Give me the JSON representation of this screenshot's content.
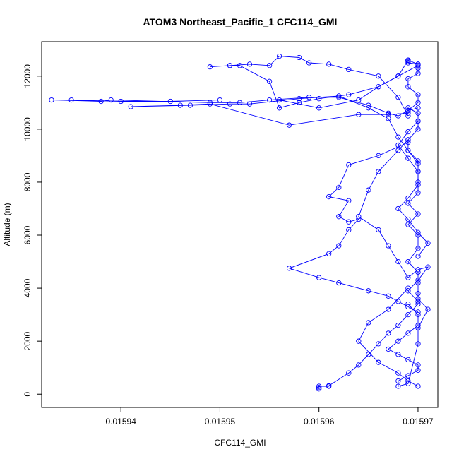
{
  "chart_data": {
    "type": "line",
    "title": "ATOM3 Northeast_Pacific_1 CFC114_GMI",
    "xlabel": "CFC114_GMI",
    "ylabel": "Altitude (m)",
    "xlim": [
      0.015932,
      0.015972
    ],
    "ylim": [
      -500,
      13300
    ],
    "x_ticks": [
      0.01594,
      0.01595,
      0.01596,
      0.01597
    ],
    "x_tick_labels": [
      "0.01594",
      "0.01595",
      "0.01596",
      "0.01597"
    ],
    "y_ticks": [
      0,
      2000,
      4000,
      6000,
      8000,
      10000,
      12000
    ],
    "y_tick_labels": [
      "0",
      "2000",
      "4000",
      "6000",
      "8000",
      "10000",
      "12000"
    ],
    "series_color": "#0000ff",
    "grid": false,
    "legend": "none",
    "series": [
      {
        "x": [
          0.01596,
          0.01596,
          0.01596,
          0.015961,
          0.015961,
          0.015963,
          0.015964,
          0.015965,
          0.015966,
          0.015967,
          0.015968,
          0.015969,
          0.01597,
          0.01597,
          0.01597,
          0.01597,
          0.015969,
          0.01597,
          0.01597,
          0.015969,
          0.01597,
          0.015969,
          0.01597,
          0.01597,
          0.01597,
          0.01597,
          0.015969,
          0.015969,
          0.01597,
          0.01597,
          0.01597,
          0.015969,
          0.015969,
          0.01597,
          0.01597,
          0.015969,
          0.015969,
          0.01597,
          0.01597,
          0.01597,
          0.015969,
          0.015969,
          0.015969,
          0.015969,
          0.01597
        ],
        "y": [
          200,
          250,
          300,
          300,
          320,
          800,
          1100,
          1500,
          1900,
          2300,
          2600,
          3000,
          3400,
          3800,
          4200,
          4600,
          5000,
          5500,
          6000,
          6400,
          6800,
          7200,
          7600,
          8000,
          8400,
          8800,
          9200,
          9600,
          10000,
          10300,
          10600,
          10800,
          10700,
          11000,
          11300,
          11600,
          11900,
          12100,
          12300,
          12450,
          12500,
          12550,
          12600,
          12600,
          12450
        ]
      },
      {
        "x": [
          0.01597,
          0.01597,
          0.015968,
          0.015966,
          0.015964,
          0.01596,
          0.015956,
          0.01595,
          0.015945,
          0.01594,
          0.015935,
          0.015933,
          0.015938,
          0.015939,
          0.015949,
          0.015952,
          0.015955,
          0.015959,
          0.015962,
          0.015965,
          0.015967,
          0.015968,
          0.015969,
          0.01597
        ],
        "y": [
          12450,
          12400,
          12000,
          11600,
          11100,
          10800,
          11100,
          11100,
          11050,
          11050,
          11100,
          11100,
          11050,
          11100,
          11000,
          11000,
          11100,
          11200,
          11200,
          10900,
          10600,
          10500,
          10700,
          10800
        ]
      },
      {
        "x": [
          0.015969,
          0.015968,
          0.015966,
          0.015963,
          0.01596,
          0.015958,
          0.015956,
          0.015955,
          0.015952,
          0.015951,
          0.015949,
          0.015951,
          0.015953,
          0.015955,
          0.015956,
          0.015958,
          0.015959,
          0.015961,
          0.015963,
          0.015966,
          0.015968,
          0.015969
        ],
        "y": [
          12600,
          12000,
          11600,
          11300,
          11150,
          11000,
          10800,
          11800,
          12400,
          12400,
          12350,
          12400,
          12450,
          12400,
          12750,
          12700,
          12500,
          12450,
          12250,
          12000,
          11200,
          10500
        ]
      },
      {
        "x": [
          0.015969,
          0.015967,
          0.015964,
          0.015957,
          0.015949,
          0.015946,
          0.015941,
          0.015947,
          0.015951,
          0.015953,
          0.015958,
          0.015962,
          0.015965,
          0.015967,
          0.015968,
          0.015969,
          0.01597
        ],
        "y": [
          10600,
          10550,
          10550,
          10150,
          10950,
          10900,
          10850,
          10900,
          10950,
          10950,
          11150,
          11250,
          10800,
          10400,
          9700,
          9200,
          8700
        ]
      },
      {
        "x": [
          0.015969,
          0.015966,
          0.015963,
          0.015962,
          0.015961,
          0.015963,
          0.015962,
          0.015963,
          0.015964,
          0.015963,
          0.015962,
          0.015961,
          0.015957,
          0.01596,
          0.015962,
          0.015965,
          0.015967,
          0.015968,
          0.015969,
          0.01597
        ],
        "y": [
          9500,
          9000,
          8650,
          7800,
          7450,
          7300,
          6700,
          6500,
          6600,
          6200,
          5600,
          5300,
          4750,
          4400,
          4200,
          3900,
          3700,
          3500,
          3300,
          3100
        ]
      },
      {
        "x": [
          0.015969,
          0.015967,
          0.015965,
          0.015964,
          0.015966,
          0.015968,
          0.015969,
          0.01597
        ],
        "y": [
          4000,
          3200,
          2700,
          2000,
          1200,
          800,
          500,
          300
        ]
      },
      {
        "x": [
          0.015969,
          0.015968,
          0.015966,
          0.015965,
          0.015964,
          0.015966,
          0.015967,
          0.015968,
          0.015969,
          0.01597,
          0.015971,
          0.01597,
          0.015969,
          0.01597
        ],
        "y": [
          9600,
          9200,
          8400,
          7700,
          6700,
          6200,
          5600,
          5000,
          4400,
          4700,
          4800,
          4300,
          3900,
          3500
        ]
      },
      {
        "x": [
          0.015969,
          0.01597,
          0.01597,
          0.015969,
          0.015968,
          0.015967,
          0.015968,
          0.015969,
          0.01597,
          0.01597,
          0.015969,
          0.015968,
          0.015968,
          0.015969,
          0.01597,
          0.01597,
          0.015971,
          0.01597
        ],
        "y": [
          3400,
          3000,
          2600,
          2300,
          2000,
          1700,
          1500,
          1300,
          1100,
          900,
          700,
          500,
          300,
          400,
          1900,
          2500,
          3200,
          3600
        ]
      },
      {
        "x": [
          0.01597,
          0.015969,
          0.015968,
          0.015969,
          0.01597,
          0.01597,
          0.015969,
          0.015968,
          0.015969,
          0.01597,
          0.015971,
          0.01597
        ],
        "y": [
          10300,
          9900,
          9400,
          8900,
          8400,
          7900,
          7400,
          7000,
          6600,
          6100,
          5700,
          5200
        ]
      }
    ]
  }
}
